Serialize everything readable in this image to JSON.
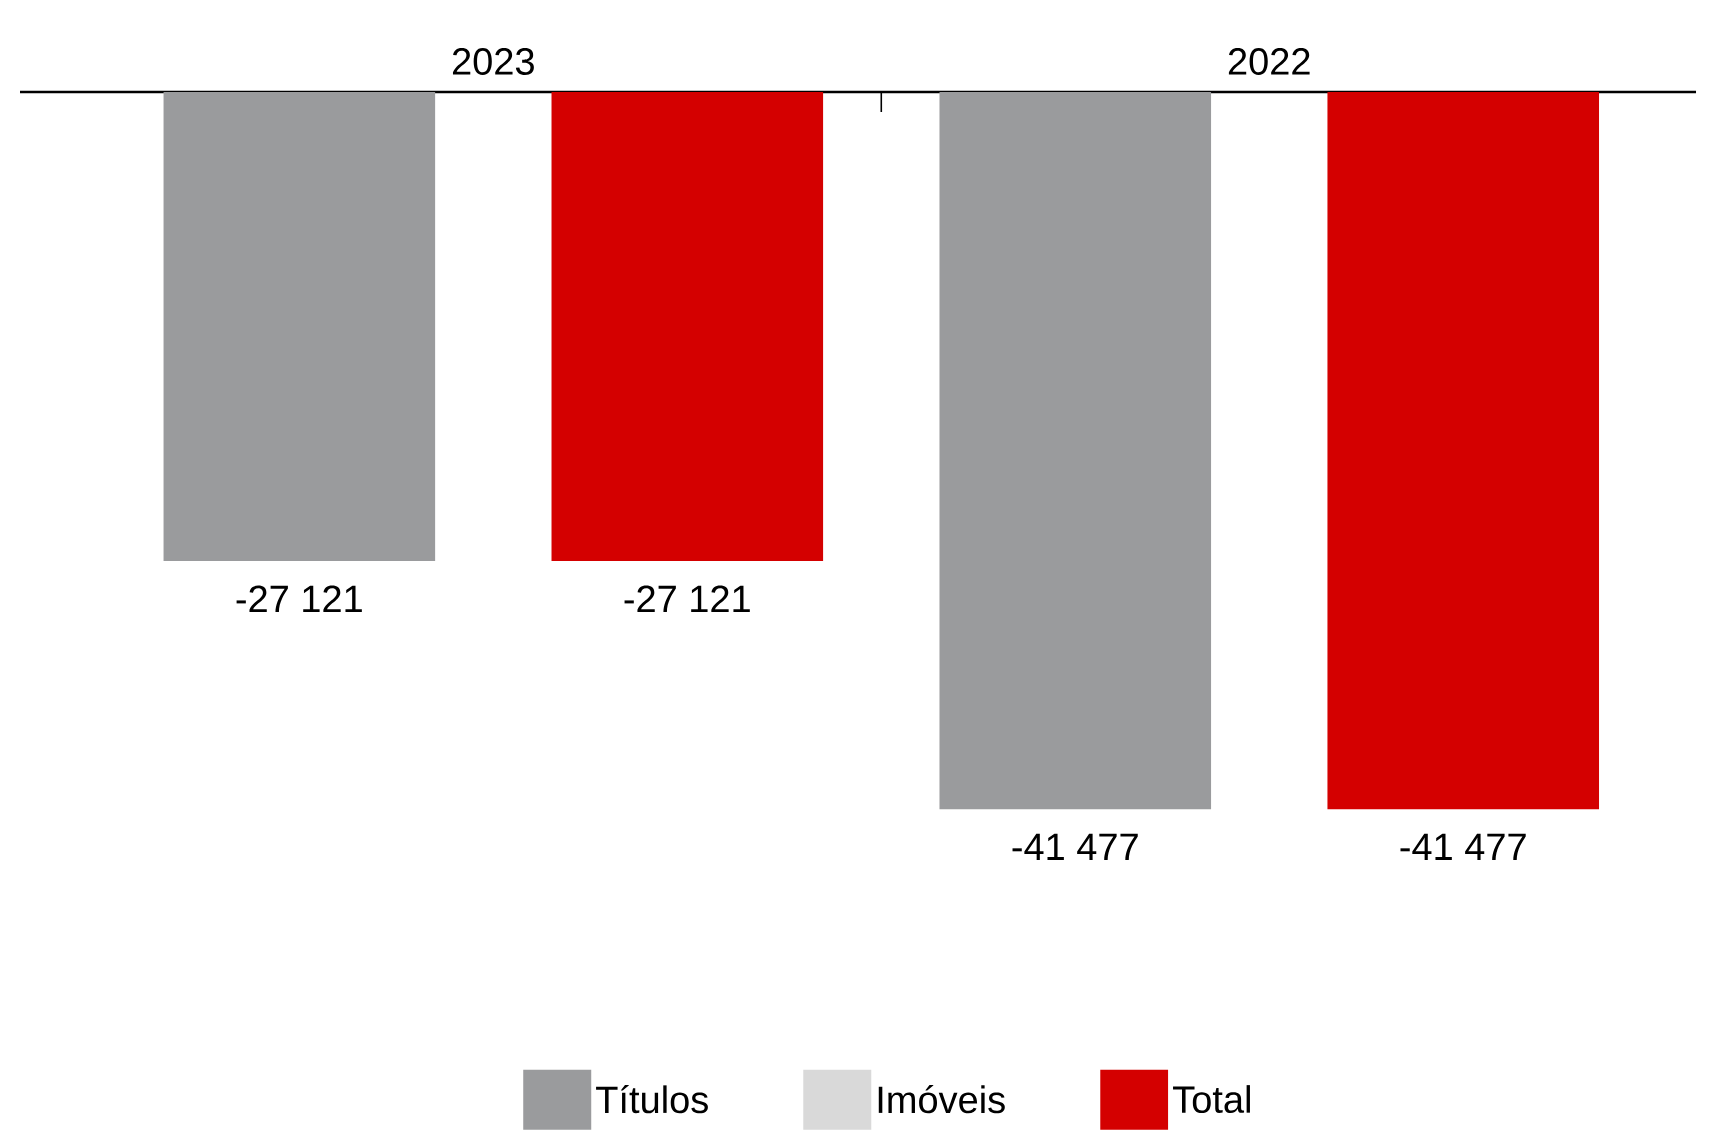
{
  "chart_data": {
    "type": "bar",
    "categories": [
      "2023",
      "2022"
    ],
    "series": [
      {
        "name": "Títulos",
        "color": "#9a9b9d",
        "values": [
          -27121,
          -41477
        ],
        "value_labels": [
          "-27 121",
          "-41 477"
        ]
      },
      {
        "name": "Imóveis",
        "color": "#d9d9d9",
        "values": [
          null,
          null
        ]
      },
      {
        "name": "Total",
        "color": "#d40000",
        "values": [
          -27121,
          -41477
        ],
        "value_labels": [
          "-27 121",
          "-41 477"
        ]
      }
    ],
    "legend": "bottom"
  }
}
